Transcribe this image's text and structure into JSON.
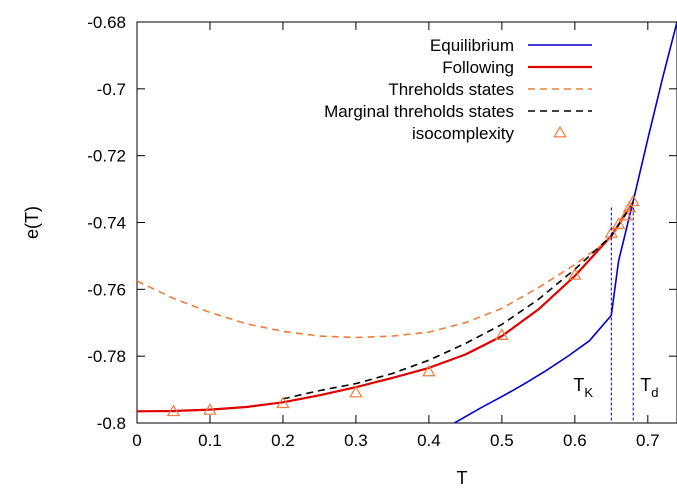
{
  "chart_data": {
    "type": "line",
    "xlabel": "T",
    "ylabel": "e(T)",
    "xlim": [
      0,
      0.74
    ],
    "ylim": [
      -0.8,
      -0.68
    ],
    "x_ticks": [
      "0",
      "0.1",
      "0.2",
      "0.3",
      "0.4",
      "0.5",
      "0.6",
      "0.7"
    ],
    "x_tick_values": [
      0,
      0.1,
      0.2,
      0.3,
      0.4,
      0.5,
      0.6,
      0.7
    ],
    "y_ticks": [
      "-0.8",
      "-0.78",
      "-0.76",
      "-0.74",
      "-0.72",
      "-0.7",
      "-0.68"
    ],
    "y_tick_values": [
      -0.8,
      -0.78,
      -0.76,
      -0.74,
      -0.72,
      -0.7,
      -0.68
    ],
    "grid": false,
    "legend_position": "top-right",
    "series": [
      {
        "name": "Equilibrium",
        "style": "solid",
        "color": "#0000cc",
        "x": [
          0.435,
          0.47,
          0.5,
          0.53,
          0.56,
          0.59,
          0.62,
          0.65,
          0.66,
          0.68,
          0.7,
          0.72,
          0.74
        ],
        "y": [
          -0.8,
          -0.7956,
          -0.7921,
          -0.7884,
          -0.7844,
          -0.7801,
          -0.7754,
          -0.7678,
          -0.7515,
          -0.7336,
          -0.715,
          -0.697,
          -0.68
        ]
      },
      {
        "name": "Following",
        "style": "solid",
        "color": "#e00000",
        "x": [
          0,
          0.05,
          0.1,
          0.15,
          0.2,
          0.25,
          0.3,
          0.35,
          0.4,
          0.45,
          0.5,
          0.55,
          0.6,
          0.65,
          0.68
        ],
        "y": [
          -0.7965,
          -0.7964,
          -0.796,
          -0.7952,
          -0.7938,
          -0.7917,
          -0.7893,
          -0.7865,
          -0.7835,
          -0.7795,
          -0.774,
          -0.766,
          -0.756,
          -0.744,
          -0.734
        ]
      },
      {
        "name": "Threholds states",
        "style": "dashed",
        "color": "#f07d3c",
        "x": [
          0,
          0.05,
          0.1,
          0.15,
          0.2,
          0.25,
          0.3,
          0.35,
          0.4,
          0.45,
          0.5,
          0.55,
          0.6,
          0.65,
          0.68
        ],
        "y": [
          -0.7575,
          -0.7627,
          -0.7669,
          -0.7703,
          -0.7726,
          -0.774,
          -0.7744,
          -0.774,
          -0.7728,
          -0.77,
          -0.7657,
          -0.7595,
          -0.7526,
          -0.7446,
          -0.734
        ]
      },
      {
        "name": "Marginal threholds states",
        "style": "dashed",
        "color": "#000000",
        "x": [
          0.2,
          0.25,
          0.3,
          0.35,
          0.4,
          0.45,
          0.5,
          0.55,
          0.6,
          0.65,
          0.68
        ],
        "y": [
          -0.7928,
          -0.7903,
          -0.7882,
          -0.7852,
          -0.7812,
          -0.7762,
          -0.7705,
          -0.763,
          -0.754,
          -0.744,
          -0.734
        ]
      },
      {
        "name": "isocomplexity",
        "style": "markers",
        "color": "#f07d3c",
        "x": [
          0.05,
          0.1,
          0.2,
          0.3,
          0.4,
          0.5,
          0.6,
          0.65,
          0.66,
          0.67,
          0.675,
          0.68
        ],
        "y": [
          -0.7966,
          -0.7962,
          -0.7942,
          -0.791,
          -0.7847,
          -0.7738,
          -0.7558,
          -0.7432,
          -0.7406,
          -0.738,
          -0.7356,
          -0.7338
        ]
      }
    ],
    "annotations": [
      {
        "text": "T",
        "sub": "K",
        "x": 0.65
      },
      {
        "text": "T",
        "sub": "d",
        "x": 0.68
      }
    ]
  }
}
